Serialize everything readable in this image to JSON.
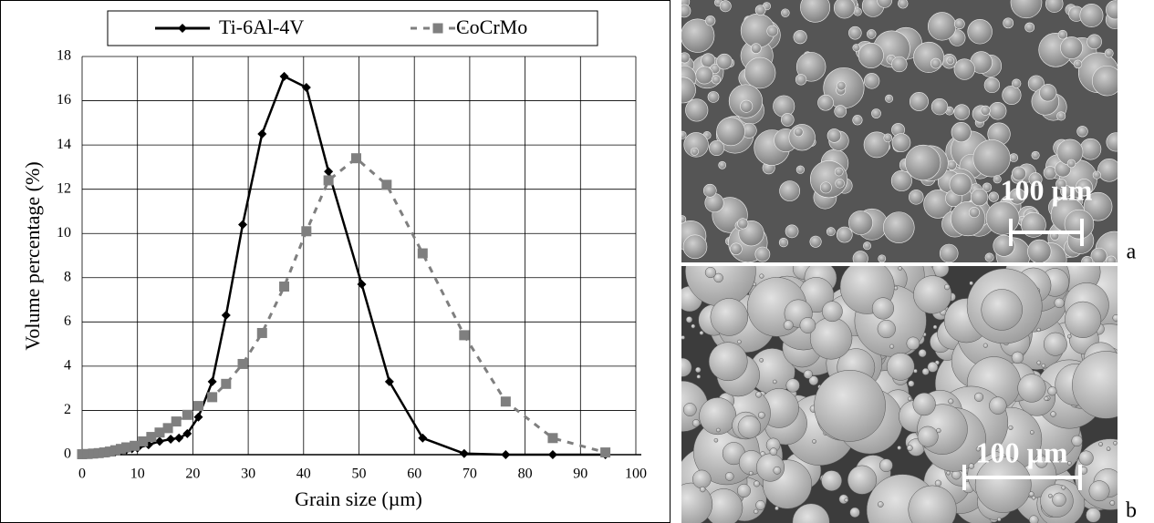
{
  "chart_data": {
    "type": "line",
    "xlabel": "Grain size (µm)",
    "ylabel": "Volume percentage (%)",
    "xlim": [
      0,
      100
    ],
    "xticks": [
      0,
      10,
      20,
      30,
      40,
      50,
      60,
      70,
      80,
      90,
      100
    ],
    "ylim": [
      0,
      18
    ],
    "yticks": [
      0,
      2,
      4,
      6,
      8,
      10,
      12,
      14,
      16,
      18
    ],
    "grid": true,
    "legend": "top",
    "series": [
      {
        "name": "Ti-6Al-4V",
        "color": "#000000",
        "marker": "diamond",
        "dashed": false,
        "x": [
          0,
          1,
          2,
          3,
          4,
          5,
          6,
          7,
          8,
          9,
          10,
          12,
          14,
          16,
          17.5,
          19,
          21,
          23.5,
          26,
          29,
          32.5,
          36.5,
          40.5,
          44.5,
          50.5,
          55.5,
          61.5,
          69,
          76.5,
          85,
          94.5
        ],
        "values": [
          0.05,
          0.05,
          0.05,
          0.06,
          0.08,
          0.1,
          0.13,
          0.17,
          0.22,
          0.27,
          0.3,
          0.45,
          0.6,
          0.7,
          0.75,
          0.95,
          1.7,
          3.3,
          6.3,
          10.4,
          14.5,
          17.1,
          16.6,
          12.8,
          7.7,
          3.3,
          0.75,
          0.05,
          0,
          0,
          0
        ]
      },
      {
        "name": "CoCrMo",
        "color": "#7f7f7f",
        "marker": "square",
        "dashed": true,
        "x": [
          0,
          1,
          2,
          3,
          4,
          5,
          6,
          7,
          8,
          9.5,
          11,
          12.5,
          14,
          15.5,
          17,
          19,
          21,
          23.5,
          26,
          29,
          32.5,
          36.5,
          40.5,
          44.5,
          49.5,
          55,
          61.5,
          69,
          76.5,
          85,
          94.5
        ],
        "values": [
          0.02,
          0.03,
          0.05,
          0.07,
          0.1,
          0.14,
          0.2,
          0.26,
          0.33,
          0.4,
          0.6,
          0.8,
          1.0,
          1.2,
          1.5,
          1.8,
          2.2,
          2.6,
          3.2,
          4.1,
          5.5,
          7.6,
          10.1,
          12.4,
          13.4,
          12.2,
          9.1,
          5.4,
          2.4,
          0.75,
          0.1
        ]
      }
    ]
  },
  "panels": [
    {
      "scale_label": "100 µm",
      "panel_label": "a"
    },
    {
      "scale_label": "100 µm",
      "panel_label": "b"
    }
  ]
}
